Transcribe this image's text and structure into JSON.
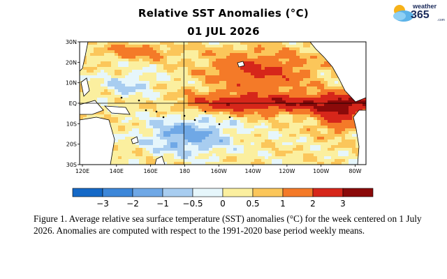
{
  "title": "Relative SST Anomalies (°C)",
  "date": "01 JUL 2026",
  "logo": {
    "top": "weather",
    "main": "365",
    "suffix": ".com"
  },
  "map": {
    "lat_labels": [
      "30N",
      "20N",
      "10N",
      "EQ",
      "10S",
      "20S",
      "30S"
    ],
    "lon_labels": [
      "120E",
      "140E",
      "160E",
      "180",
      "160W",
      "140W",
      "120W",
      "100W",
      "80W"
    ],
    "reference_lines": [
      "equator",
      "dateline"
    ],
    "regions": [
      "western-pacific-islands",
      "australia",
      "north-america",
      "south-america"
    ]
  },
  "colorbar": {
    "tick_labels": [
      "−3",
      "−2",
      "−1",
      "−0.5",
      "0",
      "0.5",
      "1",
      "2",
      "3"
    ],
    "colors": [
      "#1569c7",
      "#3d87d9",
      "#6fa8e6",
      "#a8cdf0",
      "#e6f6fb",
      "#fbef9f",
      "#fbc65a",
      "#f47a28",
      "#d6261a",
      "#8b0a0a"
    ]
  },
  "land_color": "#ffffff",
  "caption": "Figure 1. Average relative sea surface temperature (SST) anomalies (°C) for the week centered on 1 July 2026.  Anomalies are computed with respect to the 1991-2020 base period weekly means."
}
